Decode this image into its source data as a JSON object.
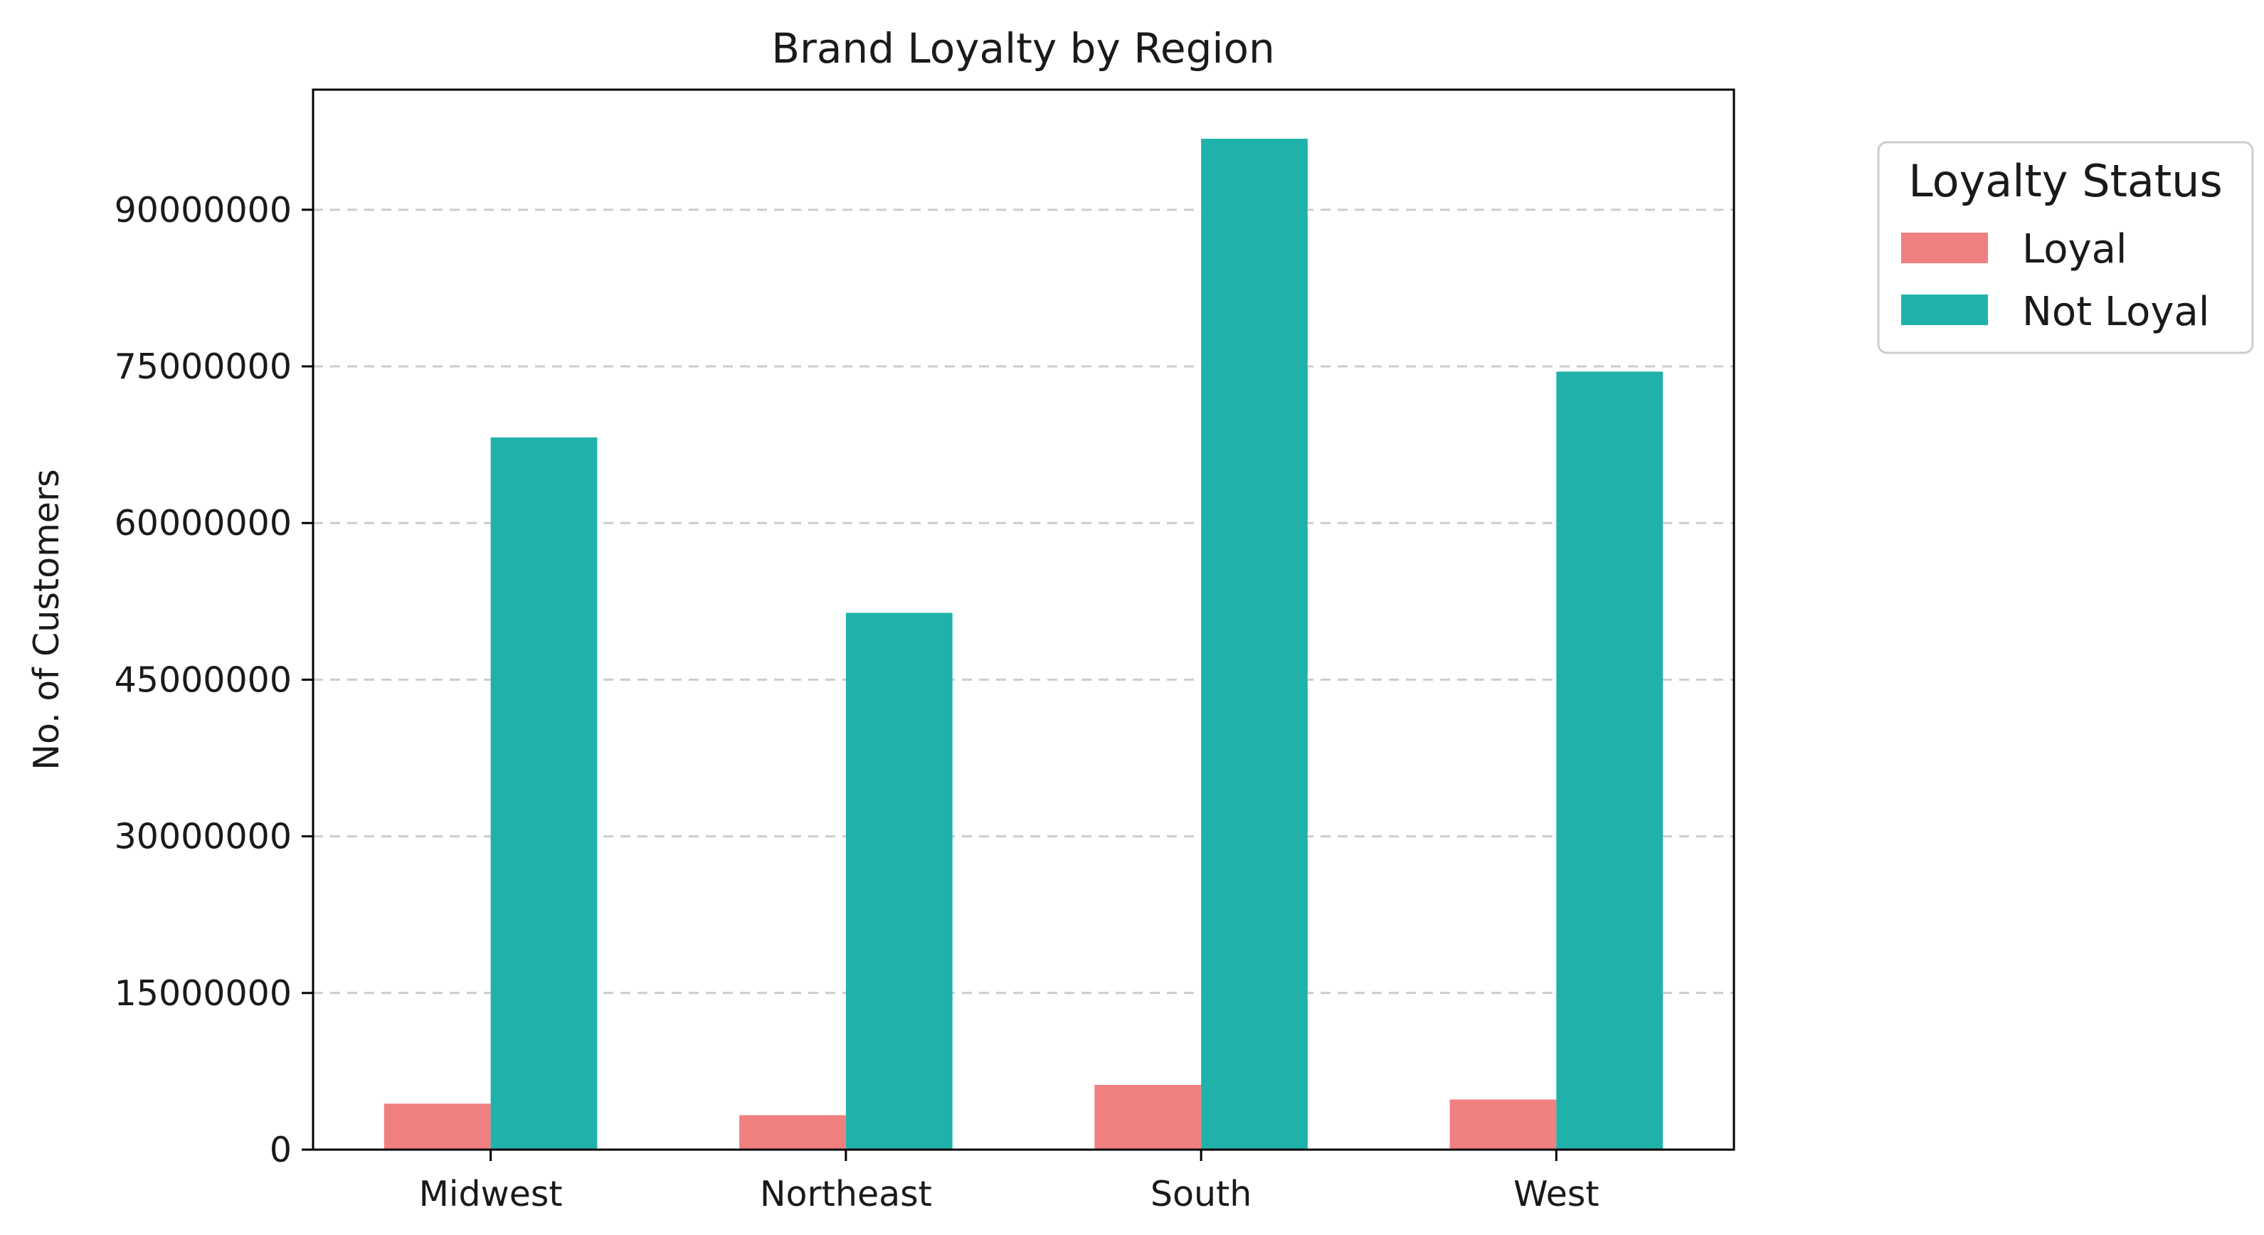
{
  "chart_data": {
    "type": "bar",
    "title": "Brand Loyalty by Region",
    "xlabel": "",
    "ylabel": "No. of Customers",
    "categories": [
      "Midwest",
      "Northeast",
      "South",
      "West"
    ],
    "series": [
      {
        "name": "Loyal",
        "values": [
          4400000,
          3300000,
          6200000,
          4800000
        ],
        "color": "#f08080"
      },
      {
        "name": "Not Loyal",
        "values": [
          68200000,
          51400000,
          96800000,
          74500000
        ],
        "color": "#20b2aa"
      }
    ],
    "ylim": [
      0,
      101500000
    ],
    "yticks": [
      0,
      15000000,
      30000000,
      45000000,
      60000000,
      75000000,
      90000000
    ],
    "ytick_labels": [
      "0",
      "15000000",
      "30000000",
      "45000000",
      "60000000",
      "75000000",
      "90000000"
    ],
    "grid": "y-dashed",
    "legend": {
      "title": "Loyalty Status",
      "placement": "outside-top-right"
    }
  }
}
